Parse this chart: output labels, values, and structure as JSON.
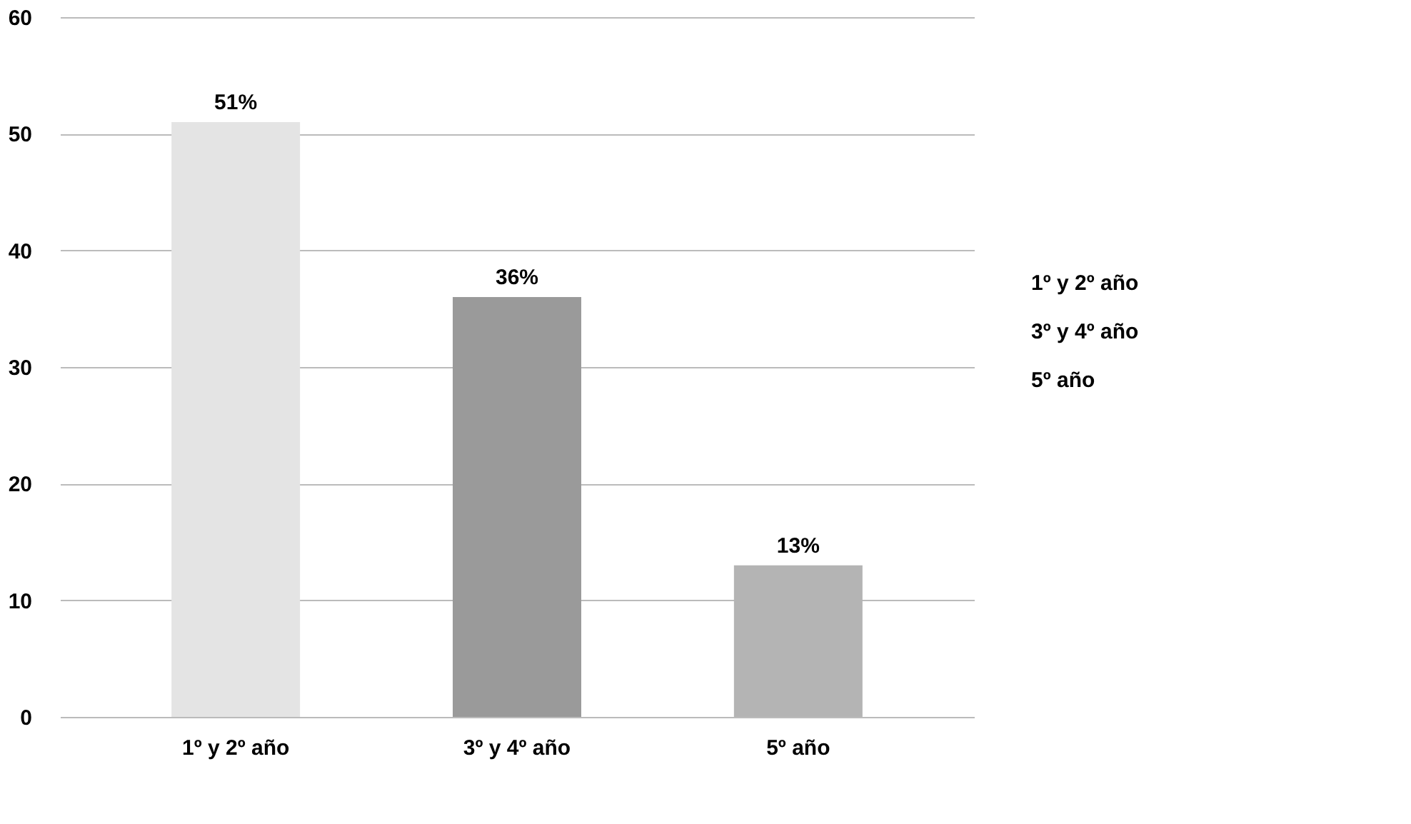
{
  "chart_data": {
    "type": "bar",
    "categories": [
      "1º y 2º año",
      "3º y 4º año",
      "5º año"
    ],
    "values": [
      51,
      36,
      13
    ],
    "colors": [
      "#e4e4e4",
      "#9a9a9a",
      "#b4b4b4"
    ],
    "value_labels": [
      "51%",
      "36%",
      "13%"
    ],
    "ylim": [
      0,
      60
    ],
    "yticks": [
      0,
      10,
      20,
      30,
      40,
      50,
      60
    ],
    "grid": "y",
    "annotations": [
      "1º y 2º año",
      "3º y 4º año",
      "5º año"
    ]
  }
}
